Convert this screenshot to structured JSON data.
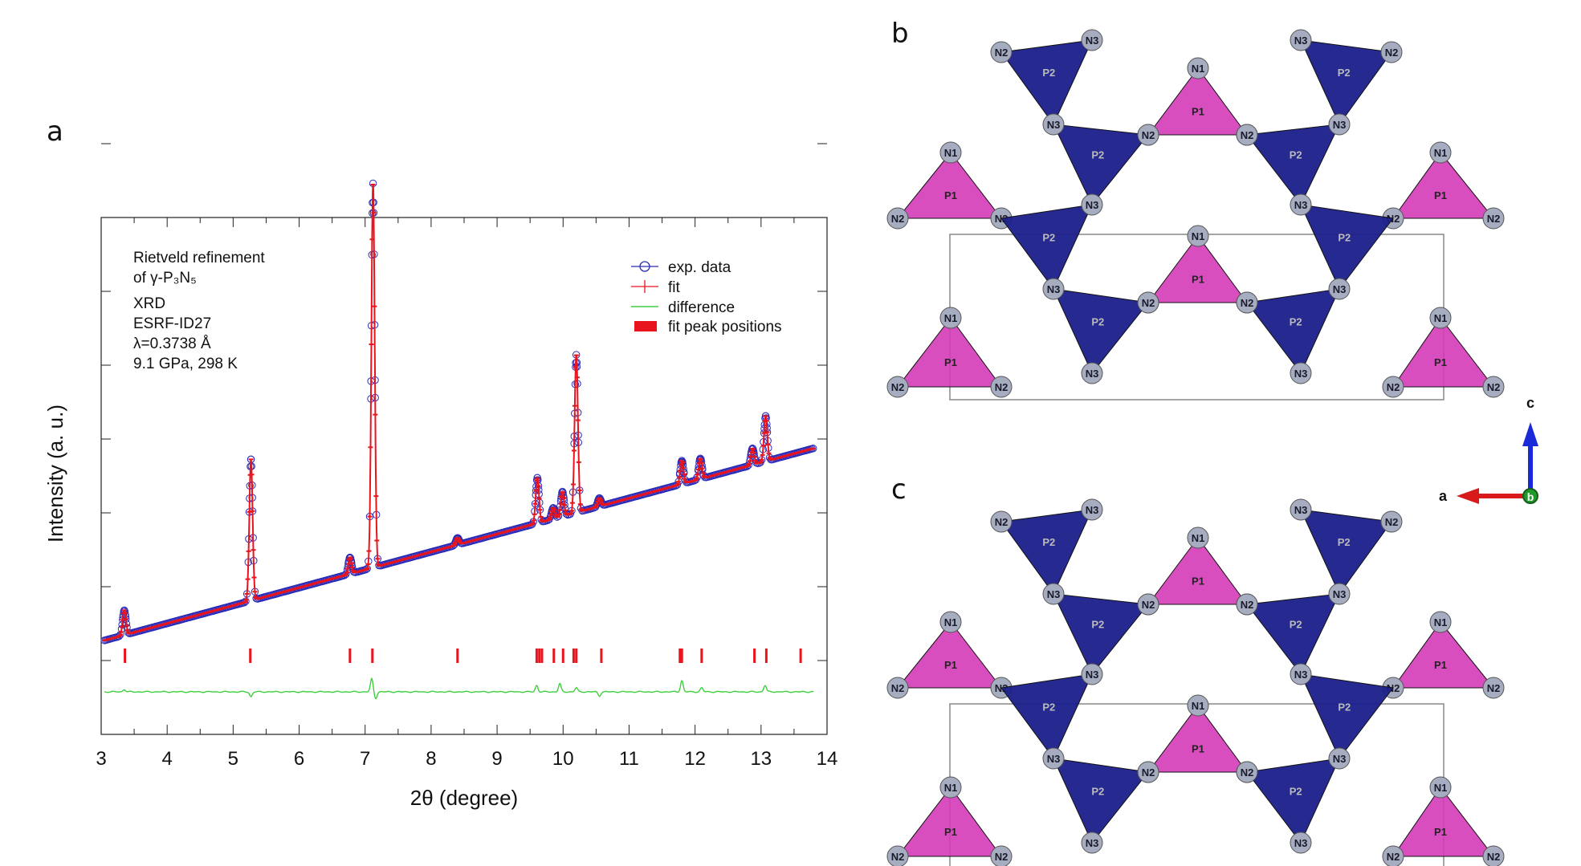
{
  "panels": {
    "a": "a",
    "b": "b",
    "c": "c"
  },
  "chart_data": {
    "type": "scatter",
    "title": "",
    "xlabel": "2θ (degree)",
    "ylabel": "Intensity (a. u.)",
    "xlim": [
      3,
      14
    ],
    "x_ticks": [
      "3",
      "4",
      "5",
      "6",
      "7",
      "8",
      "9",
      "10",
      "11",
      "12",
      "13",
      "14"
    ],
    "y_ticks_labeled": false,
    "annotation_lines": [
      "Rietveld refinement",
      "of γ-P₃N₅",
      "XRD",
      "ESRF-ID27",
      "λ=0.3738 Å",
      "9.1 GPa, 298 K"
    ],
    "legend": {
      "placement": "top-right",
      "entries": [
        "exp. data",
        "fit",
        "difference",
        "fit peak positions"
      ]
    },
    "colors": {
      "exp": "#2b2bb8",
      "fit": "#e8141e",
      "difference": "#3ecf3e",
      "peaks": "#e8141e"
    },
    "background_linear": {
      "x": [
        3.05,
        13.8
      ],
      "y": [
        0.1,
        1.5
      ]
    },
    "peaks": [
      {
        "x": 3.35,
        "height": 0.18
      },
      {
        "x": 5.27,
        "height": 1.03
      },
      {
        "x": 6.77,
        "height": 0.12
      },
      {
        "x": 7.12,
        "height": 2.8
      },
      {
        "x": 8.4,
        "height": 0.05
      },
      {
        "x": 9.61,
        "height": 0.33
      },
      {
        "x": 9.85,
        "height": 0.08
      },
      {
        "x": 9.99,
        "height": 0.18
      },
      {
        "x": 10.2,
        "height": 1.15
      },
      {
        "x": 10.55,
        "height": 0.06
      },
      {
        "x": 11.8,
        "height": 0.17
      },
      {
        "x": 12.08,
        "height": 0.15
      },
      {
        "x": 12.87,
        "height": 0.12
      },
      {
        "x": 13.07,
        "height": 0.33
      }
    ],
    "peak_positions": [
      3.36,
      5.26,
      6.77,
      7.11,
      8.4,
      9.6,
      9.64,
      9.68,
      9.86,
      10.0,
      10.16,
      10.2,
      10.58,
      11.77,
      11.8,
      12.1,
      12.9,
      13.08,
      13.6
    ],
    "difference_spikes": [
      {
        "x": 3.35,
        "amp": 0.03
      },
      {
        "x": 5.27,
        "amp": -0.06
      },
      {
        "x": 7.1,
        "amp": 0.16
      },
      {
        "x": 7.16,
        "amp": -0.08
      },
      {
        "x": 9.6,
        "amp": 0.08
      },
      {
        "x": 9.95,
        "amp": 0.1
      },
      {
        "x": 10.2,
        "amp": 0.05
      },
      {
        "x": 10.55,
        "amp": -0.05
      },
      {
        "x": 11.8,
        "amp": 0.14
      },
      {
        "x": 12.1,
        "amp": 0.05
      },
      {
        "x": 13.06,
        "amp": 0.08
      }
    ]
  },
  "structure": {
    "axis_labels": {
      "c": "c",
      "a": "a",
      "b": "b"
    },
    "axis_colors": {
      "c": "#1a2ad8",
      "a": "#d81a1a",
      "b": "#1f9a2a"
    },
    "tetra_colors": {
      "p1": "#d43bb8",
      "p2": "#1a1f8a",
      "atom": "#a6adc0"
    },
    "atom_labels": {
      "N1": "N1",
      "N2": "N2",
      "N3": "N3",
      "P1": "P1",
      "P2": "P2"
    }
  }
}
